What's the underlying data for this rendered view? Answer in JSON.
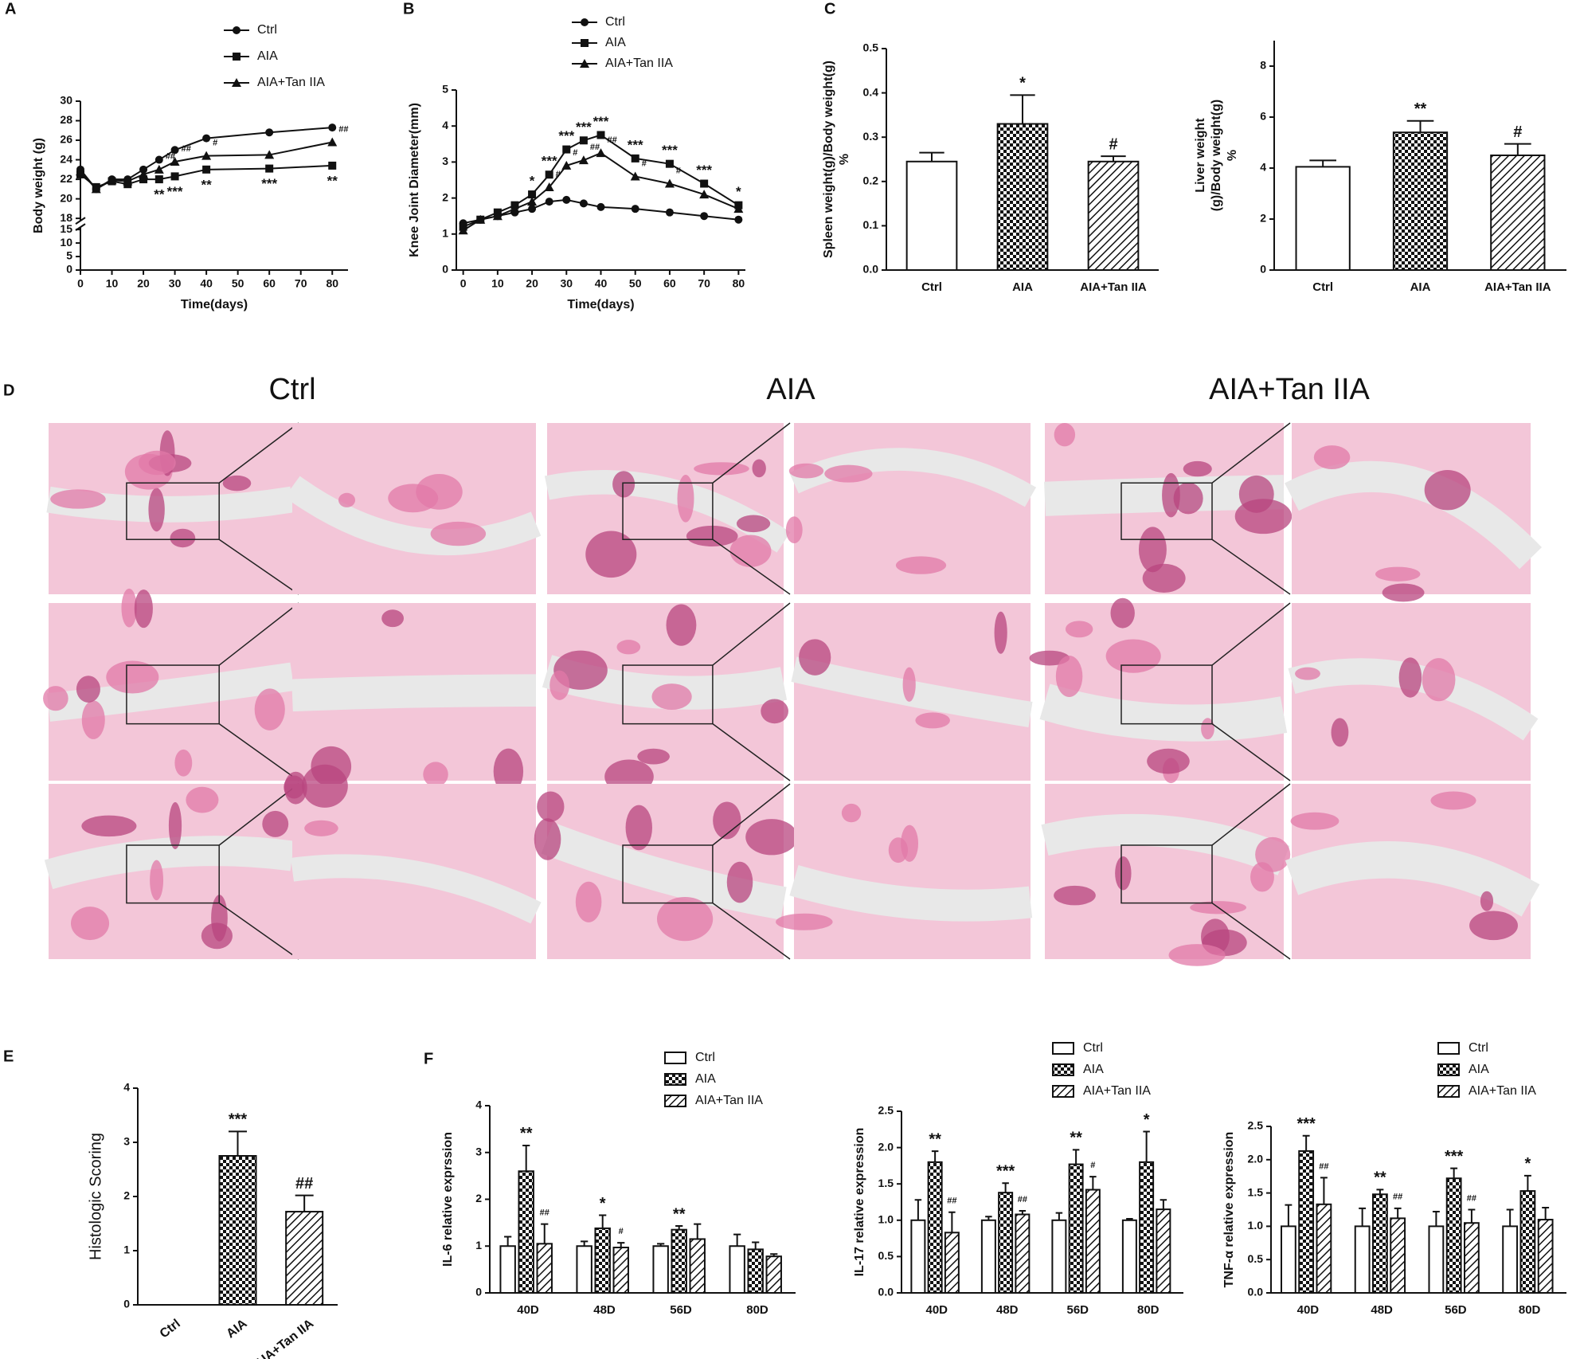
{
  "panel_labels": [
    "A",
    "B",
    "C",
    "D",
    "E",
    "F"
  ],
  "histology": {
    "columns": [
      "Ctrl",
      "AIA",
      "AIA+Tan IIA"
    ]
  },
  "chart_data": [
    {
      "type": "line",
      "xlabel": "Time(days)",
      "ylabel": [
        "Body weight (g)"
      ],
      "x": [
        0,
        5,
        10,
        15,
        20,
        25,
        30,
        40,
        60,
        80
      ],
      "xlim": [
        0,
        85
      ],
      "xticks": [
        0,
        10,
        20,
        30,
        40,
        50,
        60,
        70,
        80
      ],
      "ylim": [
        0,
        30
      ],
      "ybreak": [
        15,
        18
      ],
      "yticks": [
        0,
        5,
        10,
        15,
        18,
        20,
        22,
        24,
        26,
        28,
        30
      ],
      "series": [
        {
          "name": "Ctrl",
          "marker": "circle",
          "color": "#111111",
          "values": [
            23,
            21,
            22,
            22,
            23,
            24,
            25,
            26.2,
            26.8,
            27.3
          ],
          "significance": [
            null,
            null,
            null,
            null,
            null,
            null,
            null,
            null,
            null,
            null
          ]
        },
        {
          "name": "AIA",
          "marker": "square",
          "color": "#111111",
          "values": [
            22.5,
            21.2,
            21.8,
            21.5,
            22,
            22,
            22.3,
            23,
            23.1,
            23.4
          ],
          "significance": [
            null,
            null,
            null,
            null,
            null,
            "**",
            "***",
            "**",
            "***",
            "**"
          ]
        },
        {
          "name": "AIA+Tan IIA",
          "marker": "triangle",
          "color": "#111111",
          "values": [
            22.8,
            21,
            21.9,
            21.8,
            22.5,
            23,
            23.8,
            24.4,
            24.5,
            25.8
          ],
          "significance": [
            null,
            null,
            null,
            null,
            null,
            "##",
            "##",
            "#",
            null,
            "##"
          ]
        }
      ]
    },
    {
      "type": "line",
      "xlabel": "Time(days)",
      "ylabel": [
        "Knee Joint Diameter(mm)"
      ],
      "x": [
        0,
        5,
        10,
        15,
        20,
        25,
        30,
        35,
        40,
        50,
        60,
        70,
        80
      ],
      "xlim": [
        -2,
        82
      ],
      "xticks": [
        0,
        10,
        20,
        30,
        40,
        50,
        60,
        70,
        80
      ],
      "ylim": [
        0,
        5
      ],
      "yticks": [
        0,
        1,
        2,
        3,
        4,
        5
      ],
      "series": [
        {
          "name": "Ctrl",
          "marker": "circle",
          "color": "#111111",
          "values": [
            1.3,
            1.4,
            1.5,
            1.6,
            1.7,
            1.9,
            1.95,
            1.85,
            1.75,
            1.7,
            1.6,
            1.5,
            1.4
          ],
          "significance": [
            null,
            null,
            null,
            null,
            null,
            null,
            null,
            null,
            null,
            null,
            null,
            null,
            null
          ]
        },
        {
          "name": "AIA",
          "marker": "square",
          "color": "#111111",
          "values": [
            1.2,
            1.4,
            1.6,
            1.8,
            2.1,
            2.65,
            3.35,
            3.6,
            3.75,
            3.1,
            2.95,
            2.4,
            1.8
          ],
          "significance": [
            null,
            null,
            null,
            null,
            "*",
            "***",
            "***",
            "***",
            "***",
            "***",
            "***",
            "***",
            "*"
          ]
        },
        {
          "name": "AIA+Tan IIA",
          "marker": "triangle",
          "color": "#111111",
          "values": [
            1.1,
            1.4,
            1.5,
            1.7,
            1.9,
            2.3,
            2.9,
            3.05,
            3.25,
            2.6,
            2.4,
            2.1,
            1.7
          ],
          "significance": [
            null,
            null,
            null,
            null,
            null,
            "#",
            "#",
            "##",
            "##",
            "#",
            "#",
            null,
            null
          ]
        }
      ]
    },
    {
      "type": "bar",
      "ylabel": [
        "Spleen weight(g)/Body weight(g)",
        "%"
      ],
      "categories": [
        "Ctrl",
        "AIA",
        "AIA+Tan IIA"
      ],
      "values": [
        0.245,
        0.33,
        0.245
      ],
      "errors": [
        0.02,
        0.065,
        0.012
      ],
      "significance": [
        null,
        "*",
        "#"
      ],
      "patterns": [
        "none",
        "checker",
        "hatch"
      ],
      "ylim": [
        0,
        0.5
      ],
      "yticks": [
        {
          "value": 0,
          "label": "0.0"
        },
        0.1,
        0.2,
        0.3,
        0.4,
        0.5
      ]
    },
    {
      "type": "bar",
      "ylabel": [
        "Liver weight",
        "(g)/Body weight(g)",
        "%"
      ],
      "categories": [
        "Ctrl",
        "AIA",
        "AIA+Tan IIA"
      ],
      "values": [
        4.05,
        5.4,
        4.5
      ],
      "errors": [
        0.25,
        0.45,
        0.45
      ],
      "significance": [
        null,
        "**",
        "#"
      ],
      "patterns": [
        "none",
        "checker",
        "hatch"
      ],
      "ylim": [
        0,
        9
      ],
      "yticks": [
        0,
        2,
        4,
        6,
        8
      ]
    },
    {
      "type": "bar",
      "ylabel": [
        "Histologic Scoring"
      ],
      "categories": [
        "Ctrl",
        "AIA",
        "AIA+Tan IIA"
      ],
      "values": [
        0,
        2.75,
        1.72
      ],
      "errors": [
        0,
        0.45,
        0.3
      ],
      "significance": [
        null,
        "***",
        "##"
      ],
      "patterns": [
        "none",
        "checker",
        "hatch"
      ],
      "ylim": [
        0,
        4
      ],
      "yticks": [
        0,
        1,
        2,
        3,
        4
      ]
    },
    {
      "type": "grouped_bar",
      "ylabel": [
        "IL-6 relative exprssion"
      ],
      "categories": [
        "40D",
        "48D",
        "56D",
        "80D"
      ],
      "ylim": [
        0,
        4
      ],
      "yticks": [
        0,
        1,
        2,
        3,
        4
      ],
      "series": [
        {
          "name": "Ctrl",
          "pattern": "none",
          "values": [
            1,
            1,
            1,
            1
          ],
          "errors": [
            0.2,
            0.1,
            0.05,
            0.25
          ],
          "significance": [
            null,
            null,
            null,
            null
          ]
        },
        {
          "name": "AIA",
          "pattern": "checker",
          "values": [
            2.6,
            1.38,
            1.35,
            0.93
          ],
          "errors": [
            0.55,
            0.28,
            0.08,
            0.15
          ],
          "significance": [
            "**",
            "*",
            "**",
            null
          ]
        },
        {
          "name": "AIA+Tan IIA",
          "pattern": "hatch",
          "values": [
            1.05,
            0.97,
            1.15,
            0.78
          ],
          "errors": [
            0.42,
            0.1,
            0.32,
            0.05
          ],
          "significance": [
            "##",
            "#",
            null,
            null
          ]
        }
      ]
    },
    {
      "type": "grouped_bar",
      "ylabel": [
        "IL-17 relative expression"
      ],
      "categories": [
        "40D",
        "48D",
        "56D",
        "80D"
      ],
      "ylim": [
        0,
        2.5
      ],
      "yticks": [
        {
          "value": 0,
          "label": "0.0"
        },
        0.5,
        {
          "value": 1,
          "label": "1.0"
        },
        1.5,
        {
          "value": 2,
          "label": "2.0"
        },
        2.5
      ],
      "series": [
        {
          "name": "Ctrl",
          "pattern": "none",
          "values": [
            1,
            1,
            1,
            1
          ],
          "errors": [
            0.28,
            0.05,
            0.1,
            0.02
          ],
          "significance": [
            null,
            null,
            null,
            null
          ]
        },
        {
          "name": "AIA",
          "pattern": "checker",
          "values": [
            1.8,
            1.38,
            1.77,
            1.8
          ],
          "errors": [
            0.15,
            0.13,
            0.2,
            0.42
          ],
          "significance": [
            "**",
            "***",
            "**",
            "*"
          ]
        },
        {
          "name": "AIA+Tan IIA",
          "pattern": "hatch",
          "values": [
            0.83,
            1.08,
            1.42,
            1.15
          ],
          "errors": [
            0.28,
            0.05,
            0.18,
            0.13
          ],
          "significance": [
            "##",
            "##",
            "#",
            null
          ]
        }
      ]
    },
    {
      "type": "grouped_bar",
      "ylabel": [
        "TNF-α  relative expression"
      ],
      "categories": [
        "40D",
        "48D",
        "56D",
        "80D"
      ],
      "ylim": [
        0,
        2.5
      ],
      "yticks": [
        {
          "value": 0,
          "label": "0.0"
        },
        0.5,
        {
          "value": 1,
          "label": "1.0"
        },
        1.5,
        {
          "value": 2,
          "label": "2.0"
        },
        2.5
      ],
      "series": [
        {
          "name": "Ctrl",
          "pattern": "none",
          "values": [
            1,
            1,
            1,
            1
          ],
          "errors": [
            0.32,
            0.27,
            0.22,
            0.25
          ],
          "significance": [
            null,
            null,
            null,
            null
          ]
        },
        {
          "name": "AIA",
          "pattern": "checker",
          "values": [
            2.13,
            1.48,
            1.72,
            1.53
          ],
          "errors": [
            0.23,
            0.07,
            0.15,
            0.23
          ],
          "significance": [
            "***",
            "**",
            "***",
            "*"
          ]
        },
        {
          "name": "AIA+Tan IIA",
          "pattern": "hatch",
          "values": [
            1.33,
            1.12,
            1.05,
            1.1
          ],
          "errors": [
            0.4,
            0.15,
            0.2,
            0.18
          ],
          "significance": [
            "##",
            "##",
            "##",
            null
          ]
        }
      ]
    }
  ]
}
